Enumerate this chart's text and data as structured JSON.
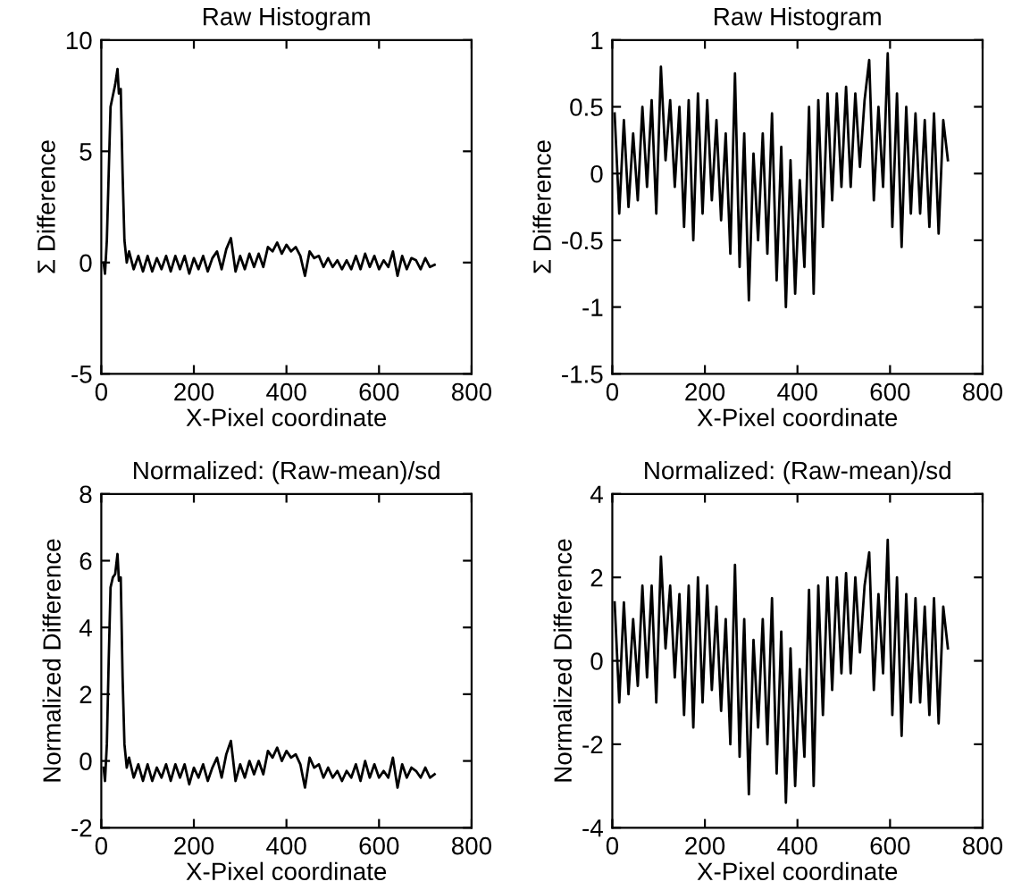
{
  "chart_data": [
    {
      "type": "line",
      "title": "Raw Histogram",
      "xlabel": "X-Pixel coordinate",
      "ylabel": "Σ Difference",
      "xlim": [
        0,
        800
      ],
      "xticks": [
        0,
        200,
        400,
        600,
        800
      ],
      "ylim": [
        -5,
        10
      ],
      "yticks": [
        -5,
        0,
        5,
        10
      ],
      "grid": false,
      "legend": false,
      "x": [
        5,
        8,
        12,
        16,
        20,
        25,
        30,
        35,
        38,
        42,
        46,
        50,
        55,
        60,
        70,
        80,
        90,
        100,
        110,
        120,
        130,
        140,
        150,
        160,
        170,
        180,
        190,
        200,
        210,
        220,
        230,
        240,
        250,
        260,
        270,
        280,
        290,
        300,
        310,
        320,
        330,
        340,
        350,
        360,
        370,
        380,
        390,
        400,
        410,
        420,
        430,
        440,
        450,
        460,
        470,
        480,
        490,
        500,
        510,
        520,
        530,
        540,
        550,
        560,
        570,
        580,
        590,
        600,
        610,
        620,
        630,
        640,
        650,
        660,
        670,
        680,
        690,
        700,
        710,
        720
      ],
      "series": [
        {
          "color": "#000000",
          "values": [
            0,
            -0.5,
            1,
            4,
            7,
            7.5,
            8,
            8.7,
            7.6,
            7.8,
            4,
            1,
            0,
            0.5,
            -0.3,
            0.3,
            -0.4,
            0.3,
            -0.4,
            0.2,
            -0.3,
            0.3,
            -0.4,
            0.3,
            -0.3,
            0.3,
            -0.5,
            0.2,
            -0.3,
            0.3,
            -0.4,
            0.2,
            0.5,
            -0.3,
            0.6,
            1.1,
            -0.4,
            0.3,
            -0.3,
            0.4,
            -0.2,
            0.4,
            -0.2,
            0.7,
            0.5,
            0.9,
            0.4,
            0.8,
            0.5,
            0.7,
            0.3,
            -0.6,
            0.5,
            0.2,
            0.3,
            -0.2,
            0.2,
            -0.2,
            0.1,
            -0.3,
            0.1,
            -0.3,
            0.3,
            -0.3,
            0.4,
            -0.2,
            0.3,
            -0.3,
            0.1,
            -0.2,
            0.5,
            -0.6,
            0.3,
            -0.3,
            0.2,
            0.1,
            -0.3,
            0.2,
            -0.2,
            -0.1
          ]
        }
      ]
    },
    {
      "type": "line",
      "title": "Raw Histogram",
      "xlabel": "X-Pixel coordinate",
      "ylabel": "Σ Difference",
      "xlim": [
        0,
        800
      ],
      "xticks": [
        0,
        200,
        400,
        600,
        800
      ],
      "ylim": [
        -1.5,
        1
      ],
      "yticks": [
        -1.5,
        -1,
        -0.5,
        0,
        0.5,
        1
      ],
      "grid": false,
      "legend": false,
      "x": [
        5,
        15,
        25,
        35,
        45,
        55,
        65,
        75,
        85,
        95,
        105,
        115,
        125,
        135,
        145,
        155,
        165,
        175,
        185,
        195,
        205,
        215,
        225,
        235,
        245,
        255,
        265,
        275,
        285,
        295,
        305,
        315,
        325,
        335,
        345,
        355,
        365,
        375,
        385,
        395,
        405,
        415,
        425,
        435,
        445,
        455,
        465,
        475,
        485,
        495,
        505,
        515,
        525,
        535,
        545,
        555,
        565,
        575,
        585,
        595,
        605,
        615,
        625,
        635,
        645,
        655,
        665,
        675,
        685,
        695,
        705,
        715,
        725
      ],
      "series": [
        {
          "color": "#000000",
          "values": [
            0.45,
            -0.3,
            0.4,
            -0.25,
            0.3,
            -0.2,
            0.5,
            -0.1,
            0.55,
            -0.3,
            0.8,
            0.1,
            0.55,
            -0.1,
            0.5,
            -0.4,
            0.55,
            -0.5,
            0.6,
            -0.3,
            0.55,
            -0.2,
            0.4,
            -0.35,
            0.3,
            -0.6,
            0.75,
            -0.7,
            0.3,
            -0.95,
            0.15,
            -0.5,
            0.3,
            -0.6,
            0.45,
            -0.8,
            0.2,
            -1.0,
            0.1,
            -0.9,
            -0.05,
            -0.7,
            0.5,
            -0.9,
            0.55,
            -0.4,
            0.6,
            -0.2,
            0.6,
            -0.1,
            0.65,
            -0.1,
            0.6,
            0.05,
            0.55,
            0.85,
            -0.2,
            0.5,
            -0.1,
            0.9,
            -0.4,
            0.6,
            -0.55,
            0.5,
            -0.3,
            0.45,
            -0.3,
            0.4,
            -0.4,
            0.45,
            -0.45,
            0.4,
            0.1
          ]
        }
      ]
    },
    {
      "type": "line",
      "title": "Normalized: (Raw-mean)/sd",
      "xlabel": "X-Pixel coordinate",
      "ylabel": "Normalized Difference",
      "xlim": [
        0,
        800
      ],
      "xticks": [
        0,
        200,
        400,
        600,
        800
      ],
      "ylim": [
        -2,
        8
      ],
      "yticks": [
        -2,
        0,
        2,
        4,
        6,
        8
      ],
      "grid": false,
      "legend": false,
      "x": [
        5,
        8,
        12,
        16,
        20,
        25,
        30,
        35,
        38,
        42,
        46,
        50,
        55,
        60,
        70,
        80,
        90,
        100,
        110,
        120,
        130,
        140,
        150,
        160,
        170,
        180,
        190,
        200,
        210,
        220,
        230,
        240,
        250,
        260,
        270,
        280,
        290,
        300,
        310,
        320,
        330,
        340,
        350,
        360,
        370,
        380,
        390,
        400,
        410,
        420,
        430,
        440,
        450,
        460,
        470,
        480,
        490,
        500,
        510,
        520,
        530,
        540,
        550,
        560,
        570,
        580,
        590,
        600,
        610,
        620,
        630,
        640,
        650,
        660,
        670,
        680,
        690,
        700,
        710,
        720
      ],
      "series": [
        {
          "color": "#000000",
          "values": [
            -0.2,
            -0.6,
            0.5,
            3,
            5.2,
            5.5,
            5.6,
            6.2,
            5.4,
            5.5,
            2.5,
            0.5,
            -0.2,
            0.1,
            -0.5,
            -0.1,
            -0.6,
            -0.1,
            -0.6,
            -0.2,
            -0.5,
            -0.1,
            -0.6,
            -0.1,
            -0.5,
            -0.1,
            -0.7,
            -0.2,
            -0.5,
            -0.1,
            -0.6,
            -0.2,
            0.1,
            -0.5,
            0.2,
            0.6,
            -0.6,
            -0.1,
            -0.5,
            0.0,
            -0.4,
            0.0,
            -0.4,
            0.3,
            0.1,
            0.4,
            0.0,
            0.3,
            0.1,
            0.2,
            -0.1,
            -0.8,
            0.1,
            -0.2,
            -0.1,
            -0.5,
            -0.2,
            -0.5,
            -0.3,
            -0.6,
            -0.3,
            -0.5,
            -0.1,
            -0.6,
            0.0,
            -0.5,
            -0.1,
            -0.5,
            -0.3,
            -0.5,
            0.1,
            -0.8,
            -0.1,
            -0.5,
            -0.2,
            -0.3,
            -0.5,
            -0.2,
            -0.5,
            -0.4
          ]
        }
      ]
    },
    {
      "type": "line",
      "title": "Normalized: (Raw-mean)/sd",
      "xlabel": "X-Pixel coordinate",
      "ylabel": "Normalized Difference",
      "xlim": [
        0,
        800
      ],
      "xticks": [
        0,
        200,
        400,
        600,
        800
      ],
      "ylim": [
        -4,
        4
      ],
      "yticks": [
        -4,
        -2,
        0,
        2,
        4
      ],
      "grid": false,
      "legend": false,
      "x": [
        5,
        15,
        25,
        35,
        45,
        55,
        65,
        75,
        85,
        95,
        105,
        115,
        125,
        135,
        145,
        155,
        165,
        175,
        185,
        195,
        205,
        215,
        225,
        235,
        245,
        255,
        265,
        275,
        285,
        295,
        305,
        315,
        325,
        335,
        345,
        355,
        365,
        375,
        385,
        395,
        405,
        415,
        425,
        435,
        445,
        455,
        465,
        475,
        485,
        495,
        505,
        515,
        525,
        535,
        545,
        555,
        565,
        575,
        585,
        595,
        605,
        615,
        625,
        635,
        645,
        655,
        665,
        675,
        685,
        695,
        705,
        715,
        725
      ],
      "series": [
        {
          "color": "#000000",
          "values": [
            1.4,
            -1.0,
            1.4,
            -0.8,
            1.0,
            -0.6,
            1.8,
            -0.4,
            1.8,
            -1.0,
            2.5,
            0.3,
            1.8,
            -0.4,
            1.6,
            -1.3,
            1.8,
            -1.6,
            2.0,
            -1.0,
            1.8,
            -0.7,
            1.3,
            -1.2,
            1.0,
            -2.0,
            2.3,
            -2.3,
            1.0,
            -3.2,
            0.5,
            -1.6,
            1.0,
            -2.0,
            1.5,
            -2.7,
            0.7,
            -3.4,
            0.3,
            -3.0,
            -0.2,
            -2.3,
            1.7,
            -3.0,
            1.8,
            -1.3,
            2.0,
            -0.7,
            2.0,
            -0.3,
            2.1,
            -0.3,
            2.0,
            0.2,
            1.8,
            2.6,
            -0.7,
            1.6,
            -0.3,
            2.9,
            -1.3,
            2.0,
            -1.8,
            1.6,
            -1.0,
            1.5,
            -1.0,
            1.3,
            -1.3,
            1.5,
            -1.5,
            1.3,
            0.3
          ]
        }
      ]
    }
  ]
}
